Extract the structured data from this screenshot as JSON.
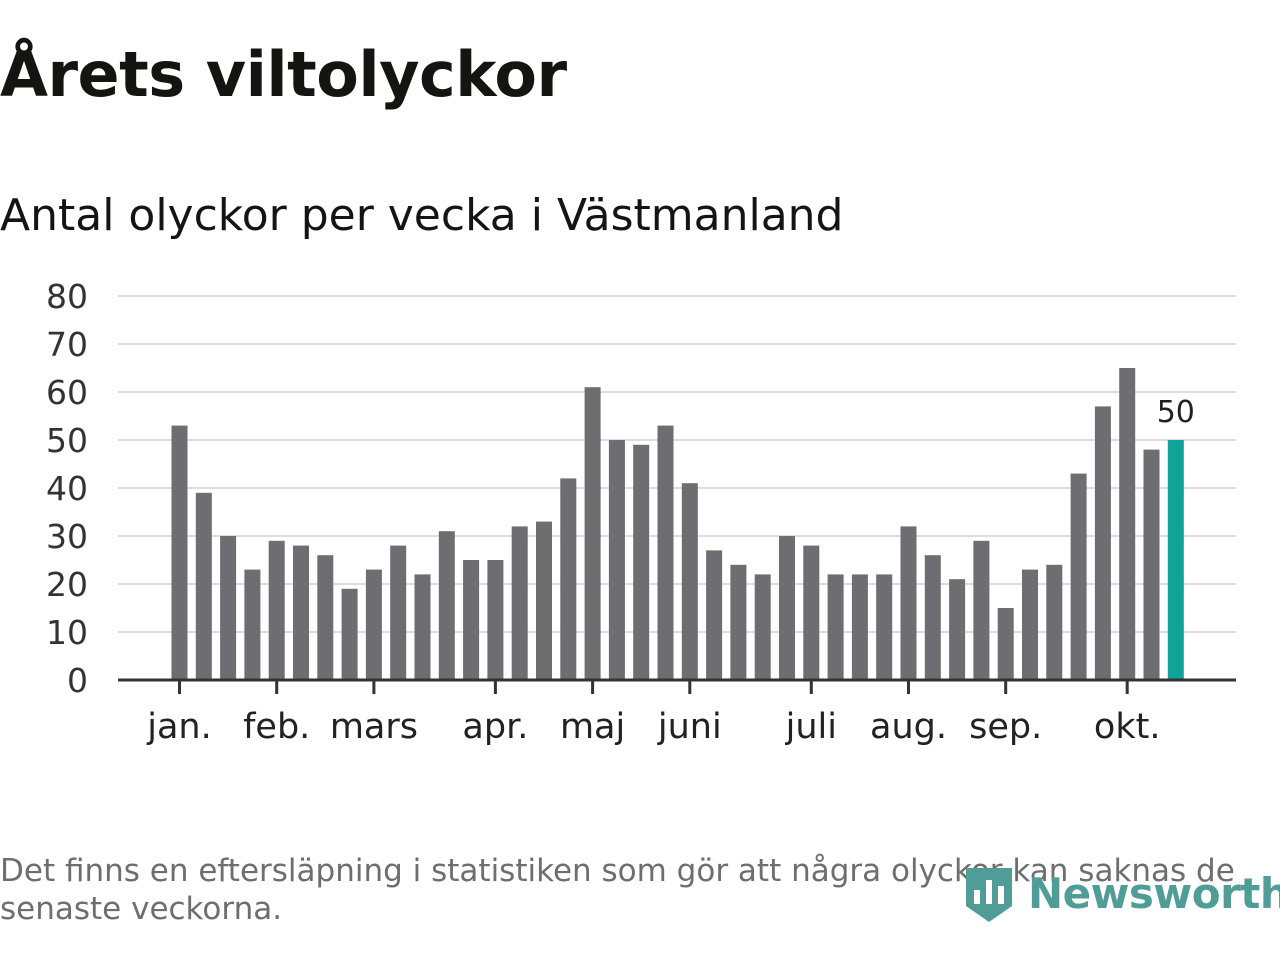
{
  "title": "Årets viltolyckor",
  "subtitle": "Antal olyckor per vecka i Västmanland",
  "footnote": "Det finns en eftersläpning i statistiken som gör att några olyckor kan saknas de senaste veckorna.",
  "logo": {
    "text": "Newsworthy",
    "icon": "newsworthy-logo-icon"
  },
  "colors": {
    "bar": "#6e6d72",
    "highlight": "#11a29a",
    "grid": "#dddddd",
    "axis": "#333333",
    "logo": "#4f9d96"
  },
  "chart_data": {
    "type": "bar",
    "title": "Antal olyckor per vecka i Västmanland",
    "xlabel": "",
    "ylabel": "",
    "ylim": [
      0,
      80
    ],
    "yticks": [
      "0",
      "10",
      "20",
      "30",
      "40",
      "50",
      "60",
      "70",
      "80"
    ],
    "values": [
      53,
      39,
      30,
      23,
      29,
      28,
      26,
      19,
      23,
      28,
      22,
      31,
      25,
      25,
      32,
      33,
      42,
      61,
      50,
      49,
      53,
      41,
      27,
      24,
      22,
      30,
      28,
      22,
      22,
      22,
      32,
      26,
      21,
      29,
      15,
      23,
      24,
      43,
      57,
      65,
      48,
      50
    ],
    "highlight_index": 41,
    "highlight_label": "50",
    "months": [
      {
        "label": "jan.",
        "week_index": 0
      },
      {
        "label": "feb.",
        "week_index": 4
      },
      {
        "label": "mars",
        "week_index": 8
      },
      {
        "label": "apr.",
        "week_index": 13
      },
      {
        "label": "maj",
        "week_index": 17
      },
      {
        "label": "juni",
        "week_index": 21
      },
      {
        "label": "juli",
        "week_index": 26
      },
      {
        "label": "aug.",
        "week_index": 30
      },
      {
        "label": "sep.",
        "week_index": 34
      },
      {
        "label": "okt.",
        "week_index": 39
      }
    ]
  }
}
